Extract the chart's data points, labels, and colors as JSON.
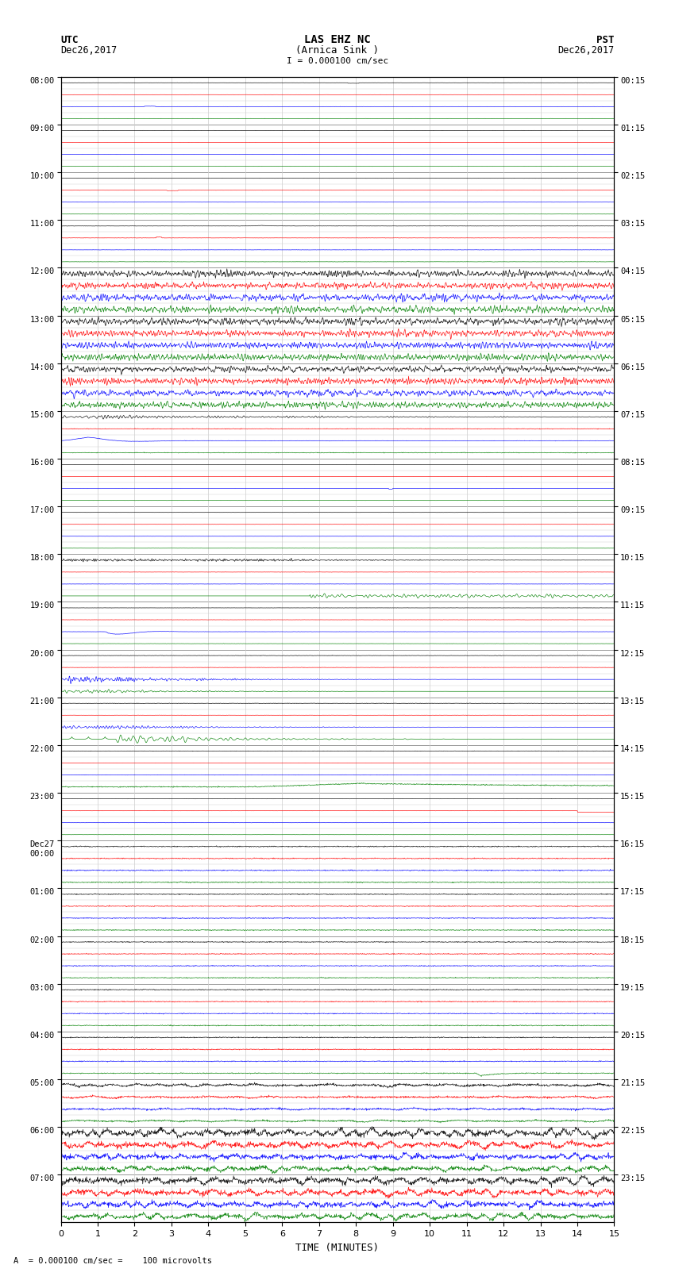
{
  "title_line1": "LAS EHZ NC",
  "title_line2": "(Arnica Sink )",
  "scale_text": "I = 0.000100 cm/sec",
  "left_label_top": "UTC",
  "left_label_date": "Dec26,2017",
  "right_label_top": "PST",
  "right_label_date": "Dec26,2017",
  "bottom_note": "A  = 0.000100 cm/sec =    100 microvolts",
  "xlabel": "TIME (MINUTES)",
  "utc_labels": [
    "08:00",
    "09:00",
    "10:00",
    "11:00",
    "12:00",
    "13:00",
    "14:00",
    "15:00",
    "16:00",
    "17:00",
    "18:00",
    "19:00",
    "20:00",
    "21:00",
    "22:00",
    "23:00",
    "Dec27\n00:00",
    "01:00",
    "02:00",
    "03:00",
    "04:00",
    "05:00",
    "06:00",
    "07:00"
  ],
  "pst_labels": [
    "00:15",
    "01:15",
    "02:15",
    "03:15",
    "04:15",
    "05:15",
    "06:15",
    "07:15",
    "08:15",
    "09:15",
    "10:15",
    "11:15",
    "12:15",
    "13:15",
    "14:15",
    "15:15",
    "16:15",
    "17:15",
    "18:15",
    "19:15",
    "20:15",
    "21:15",
    "22:15",
    "23:15"
  ],
  "n_hours": 24,
  "n_channels": 4,
  "minutes": 15,
  "bg_color": "#ffffff",
  "channel_colors": [
    "black",
    "red",
    "blue",
    "green"
  ],
  "grid_minor_color": "#cccccc",
  "grid_major_color": "#888888"
}
